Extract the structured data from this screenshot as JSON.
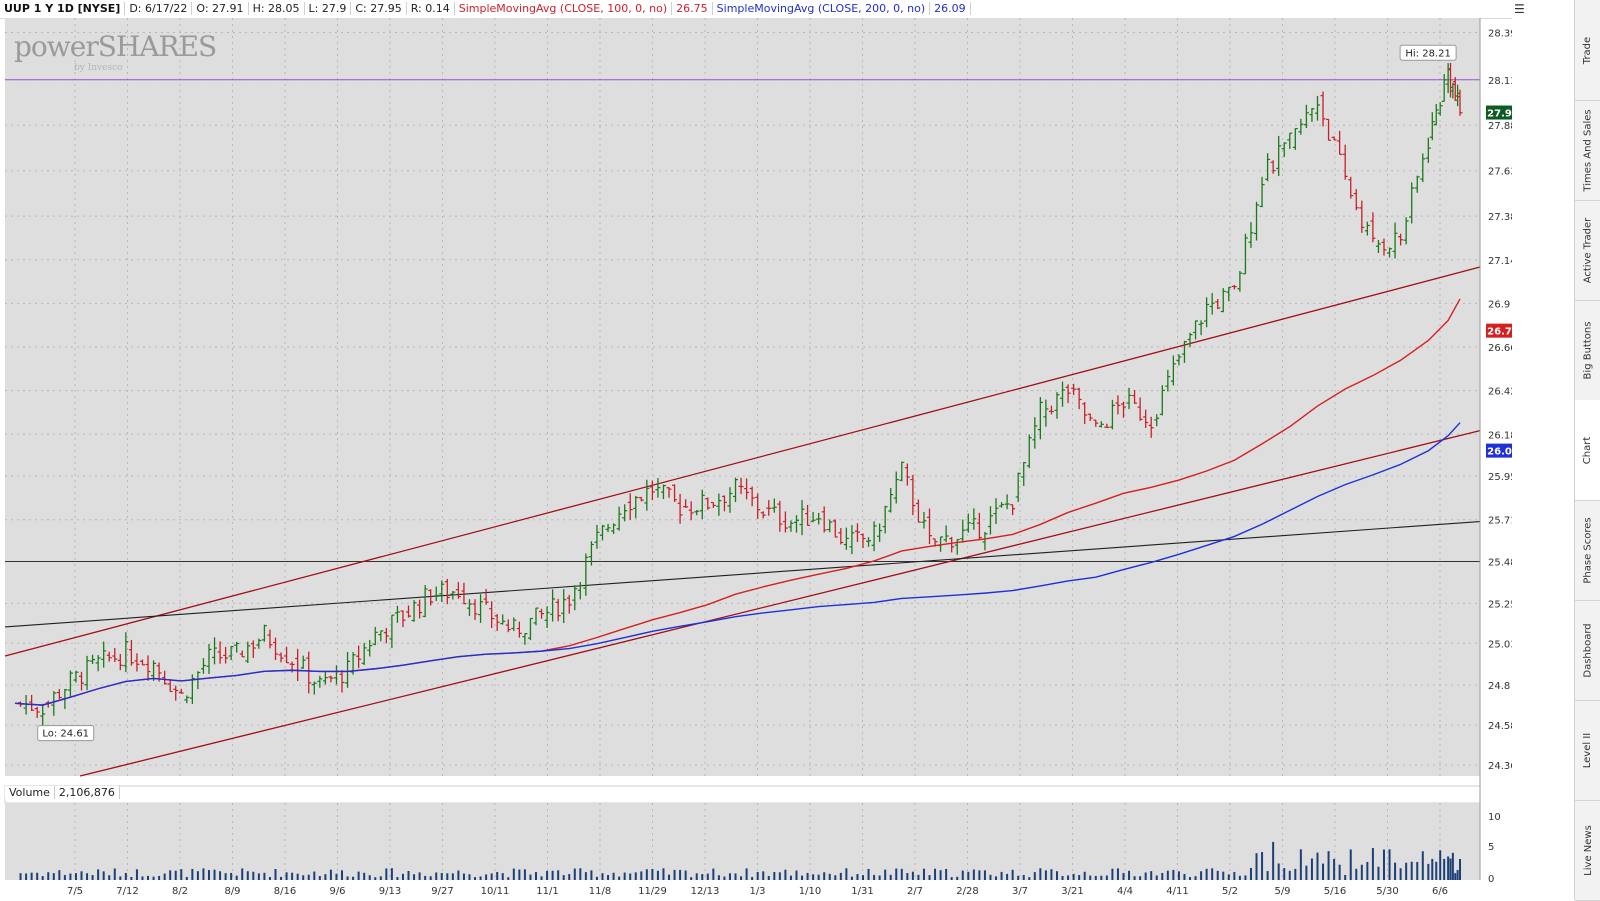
{
  "header": {
    "symbol": "UUP 1 Y 1D [NYSE]",
    "date": "D: 6/17/22",
    "open": "O: 27.91",
    "high": "H: 28.05",
    "low": "L: 27.9",
    "close": "C: 27.95",
    "range": "R: 0.14",
    "sma100_label": "SimpleMovingAvg (CLOSE, 100, 0, no)",
    "sma100_value": "26.75",
    "sma200_label": "SimpleMovingAvg (CLOSE, 200, 0, no)",
    "sma200_value": "26.09"
  },
  "watermark": {
    "brand": "powerSHARES",
    "sub": "by Invesco"
  },
  "volume": {
    "label": "Volume",
    "value": "2,106,876",
    "unit": "<millions>"
  },
  "sidebar": {
    "tabs": [
      {
        "label": "Trade"
      },
      {
        "label": "Times And Sales"
      },
      {
        "label": "Active Trader"
      },
      {
        "label": "Big Buttons"
      },
      {
        "label": "Chart",
        "active": true
      },
      {
        "label": "Phase Scores"
      },
      {
        "label": "Dashboard"
      },
      {
        "label": "Level II"
      },
      {
        "label": "Live News"
      }
    ]
  },
  "colors": {
    "background": "#dedede",
    "up": "#1a7a1a",
    "down": "#c8202a",
    "sma100": "#d42020",
    "sma200": "#2030d8",
    "trendline_red": "#a01018",
    "trendline_black": "#202020",
    "resistance": "#a050d0",
    "volume": "#1c3f78"
  },
  "chart_data": {
    "type": "ohlc",
    "ylim": [
      24.3,
      28.47
    ],
    "y_ticks": [
      "28.39",
      "28.13",
      "27.88",
      "27.63",
      "27.38",
      "27.14",
      "26.9",
      "26.66",
      "26.42",
      "26.18",
      "25.95",
      "25.71",
      "25.48",
      "25.25",
      "25.03",
      "24.8",
      "24.58",
      "24.36"
    ],
    "x_tick_labels": [
      "7/5",
      "7/12",
      "8/2",
      "8/9",
      "8/16",
      "9/6",
      "9/13",
      "9/27",
      "10/11",
      "11/1",
      "11/8",
      "11/29",
      "12/13",
      "1/3",
      "1/10",
      "1/31",
      "2/7",
      "2/28",
      "3/7",
      "3/21",
      "4/4",
      "4/11",
      "5/2",
      "5/9",
      "5/16",
      "5/30",
      "6/6"
    ],
    "hi_label": "Hi: 28.21",
    "lo_label": "Lo: 24.61",
    "last_price": "27.95",
    "sma100_tag": "26.75",
    "sma200_tag": "26.09",
    "resistance_level": 28.13,
    "support_level": 25.48,
    "close_series": [
      {
        "d": "2021-06-17",
        "c": 24.7
      },
      {
        "d": "2021-06-24",
        "c": 24.68
      },
      {
        "d": "2021-07-01",
        "c": 24.82
      },
      {
        "d": "2021-07-08",
        "c": 24.92
      },
      {
        "d": "2021-07-15",
        "c": 24.98
      },
      {
        "d": "2021-07-22",
        "c": 24.92
      },
      {
        "d": "2021-07-29",
        "c": 24.74
      },
      {
        "d": "2021-08-05",
        "c": 24.95
      },
      {
        "d": "2021-08-12",
        "c": 24.97
      },
      {
        "d": "2021-08-19",
        "c": 25.08
      },
      {
        "d": "2021-08-26",
        "c": 24.94
      },
      {
        "d": "2021-09-02",
        "c": 24.8
      },
      {
        "d": "2021-09-09",
        "c": 24.88
      },
      {
        "d": "2021-09-16",
        "c": 25.08
      },
      {
        "d": "2021-09-23",
        "c": 25.18
      },
      {
        "d": "2021-09-30",
        "c": 25.3
      },
      {
        "d": "2021-10-07",
        "c": 25.32
      },
      {
        "d": "2021-10-14",
        "c": 25.2
      },
      {
        "d": "2021-10-21",
        "c": 25.1
      },
      {
        "d": "2021-10-28",
        "c": 25.18
      },
      {
        "d": "2021-11-04",
        "c": 25.28
      },
      {
        "d": "2021-11-11",
        "c": 25.6
      },
      {
        "d": "2021-11-18",
        "c": 25.8
      },
      {
        "d": "2021-11-25",
        "c": 25.88
      },
      {
        "d": "2021-12-02",
        "c": 25.78
      },
      {
        "d": "2021-12-09",
        "c": 25.8
      },
      {
        "d": "2021-12-16",
        "c": 25.88
      },
      {
        "d": "2021-12-23",
        "c": 25.76
      },
      {
        "d": "2021-12-30",
        "c": 25.7
      },
      {
        "d": "2022-01-06",
        "c": 25.74
      },
      {
        "d": "2022-01-13",
        "c": 25.58
      },
      {
        "d": "2022-01-20",
        "c": 25.62
      },
      {
        "d": "2022-01-27",
        "c": 25.98
      },
      {
        "d": "2022-02-03",
        "c": 25.58
      },
      {
        "d": "2022-02-10",
        "c": 25.62
      },
      {
        "d": "2022-02-17",
        "c": 25.68
      },
      {
        "d": "2022-02-24",
        "c": 25.82
      },
      {
        "d": "2022-03-03",
        "c": 26.3
      },
      {
        "d": "2022-03-10",
        "c": 26.42
      },
      {
        "d": "2022-03-17",
        "c": 26.2
      },
      {
        "d": "2022-03-24",
        "c": 26.36
      },
      {
        "d": "2022-03-31",
        "c": 26.26
      },
      {
        "d": "2022-04-07",
        "c": 26.6
      },
      {
        "d": "2022-04-14",
        "c": 26.88
      },
      {
        "d": "2022-04-21",
        "c": 26.96
      },
      {
        "d": "2022-04-28",
        "c": 27.6
      },
      {
        "d": "2022-05-05",
        "c": 27.78
      },
      {
        "d": "2022-05-12",
        "c": 28.02
      },
      {
        "d": "2022-05-19",
        "c": 27.58
      },
      {
        "d": "2022-05-26",
        "c": 27.22
      },
      {
        "d": "2022-06-02",
        "c": 27.26
      },
      {
        "d": "2022-06-09",
        "c": 27.8
      },
      {
        "d": "2022-06-14",
        "c": 28.18
      },
      {
        "d": "2022-06-17",
        "c": 27.95
      }
    ]
  }
}
